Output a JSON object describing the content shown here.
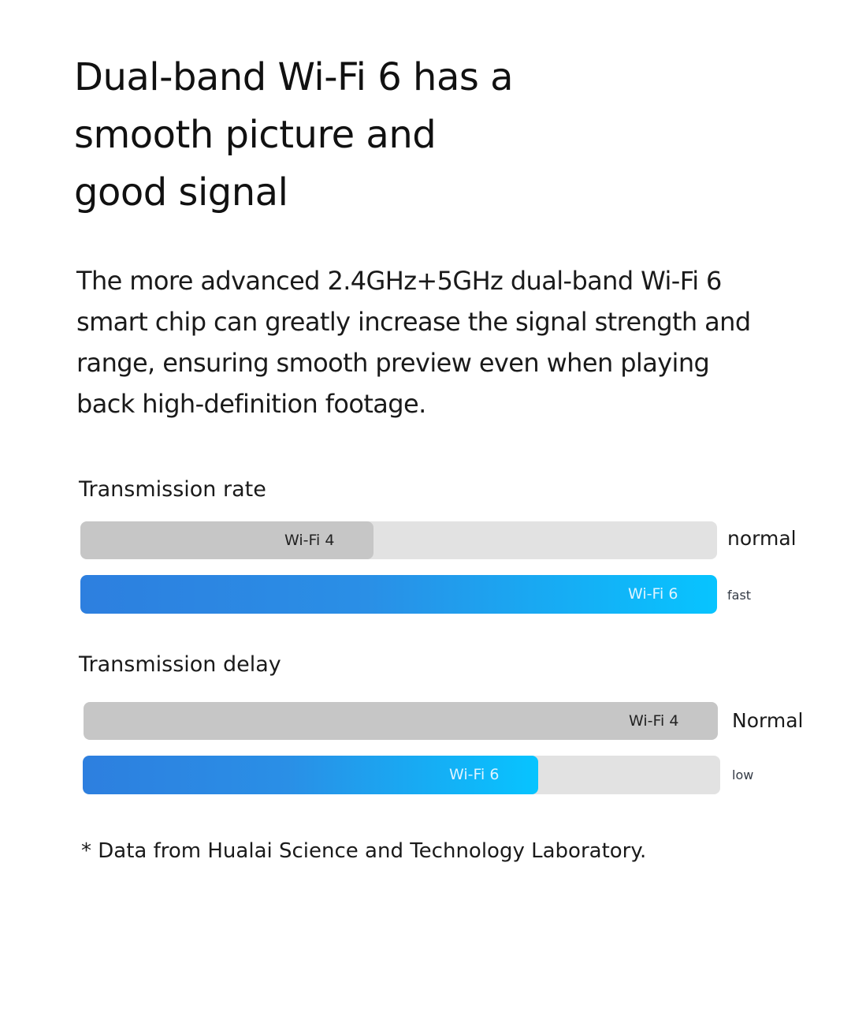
{
  "headline": {
    "lines": [
      "Dual-band Wi-Fi 6 has a",
      "smooth picture and",
      "good signal"
    ]
  },
  "description": {
    "lines": [
      "The more advanced 2.4GHz+5GHz dual-band Wi-Fi 6",
      "smart chip can greatly increase the signal strength and",
      "range, ensuring smooth preview even when playing",
      "back high-definition footage."
    ]
  },
  "chart_data": [
    {
      "type": "bar",
      "orientation": "horizontal",
      "title": "Transmission rate",
      "scale": "relative",
      "bars": [
        {
          "label": "Wi-Fi 4",
          "value": 0.46,
          "rating": "normal",
          "color": "#c6c6c6"
        },
        {
          "label": "Wi-Fi 6",
          "value": 1.0,
          "rating": "fast",
          "color": "#2d7fdf"
        }
      ]
    },
    {
      "type": "bar",
      "orientation": "horizontal",
      "title": "Transmission delay",
      "scale": "relative",
      "bars": [
        {
          "label": "Wi-Fi 4",
          "value": 1.0,
          "rating": "Normal",
          "color": "#c6c6c6"
        },
        {
          "label": "Wi-Fi 6",
          "value": 0.715,
          "rating": "low",
          "color": "#2d7fdf"
        }
      ]
    }
  ],
  "footnote": "* Data from Hualai Science and Technology Laboratory."
}
